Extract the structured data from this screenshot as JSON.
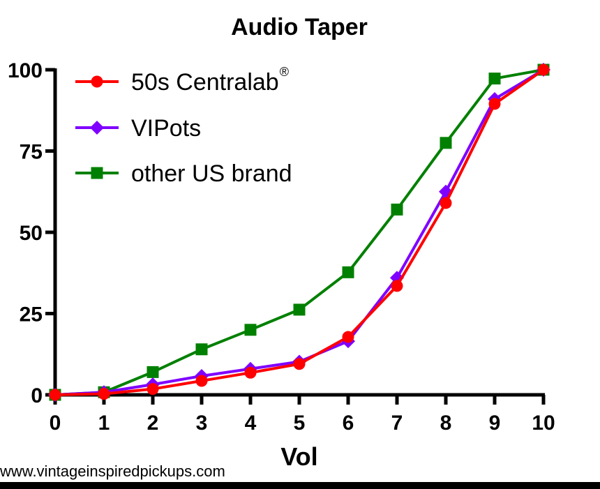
{
  "chart_data": {
    "type": "line",
    "title": "Audio Taper",
    "xlabel": "Vol",
    "ylabel": "",
    "xlim": [
      0,
      10
    ],
    "ylim": [
      0,
      100
    ],
    "x_ticks": [
      "0",
      "1",
      "2",
      "3",
      "4",
      "5",
      "6",
      "7",
      "8",
      "9",
      "10"
    ],
    "y_ticks": [
      "0",
      "25",
      "50",
      "75",
      "100"
    ],
    "x": [
      0,
      1,
      2,
      3,
      4,
      5,
      6,
      7,
      8,
      9,
      10
    ],
    "series": [
      {
        "name": "50s Centralab",
        "name_suffix": "®",
        "color": "#ff0000",
        "marker": "circle",
        "values": [
          0,
          0.3,
          1.8,
          4.3,
          6.8,
          9.5,
          17.8,
          33.5,
          59,
          89.5,
          100
        ]
      },
      {
        "name": "VIPots",
        "color": "#7f00ff",
        "marker": "diamond",
        "values": [
          0,
          0.8,
          3.2,
          5.8,
          8,
          10.2,
          16.5,
          36,
          62.5,
          91,
          100
        ]
      },
      {
        "name": "other US brand",
        "color": "#008000",
        "marker": "square",
        "values": [
          0,
          0.8,
          7,
          14,
          20,
          26.2,
          37.7,
          57,
          77.5,
          97.3,
          100
        ]
      }
    ],
    "grid": false,
    "legend_position": "top-left"
  },
  "watermark": "www.vintageinspiredpickups.com"
}
